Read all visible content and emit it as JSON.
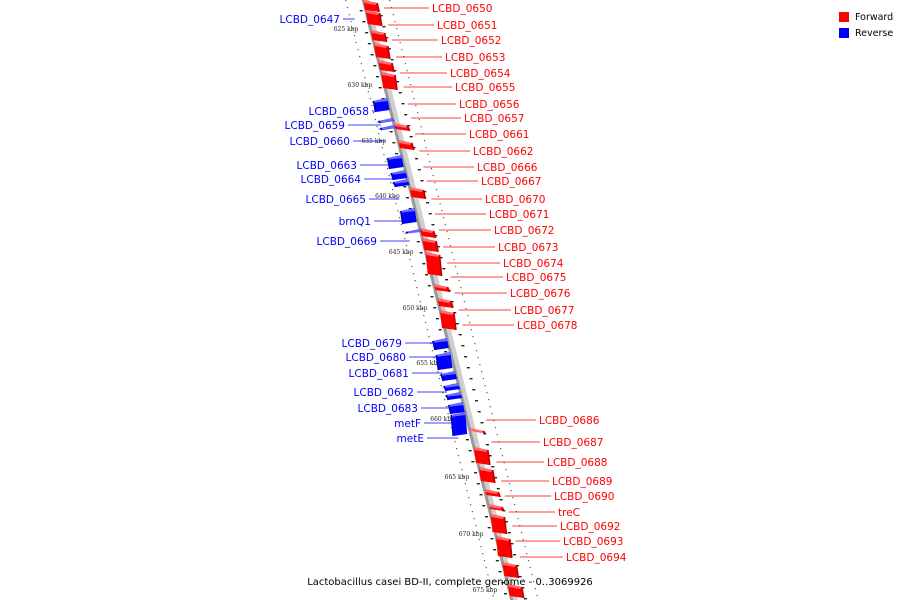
{
  "caption": "Lactobacillus casei BD-II, complete genome - 0..3069926",
  "legend": [
    {
      "label": "Forward",
      "color": "#ff0000"
    },
    {
      "label": "Reverse",
      "color": "#0000ff"
    }
  ],
  "colors": {
    "forward": "#ff0000",
    "reverse": "#0000ff",
    "backbone": "#9a9a9a"
  },
  "ticks": [
    "625 kbp",
    "630 kbp",
    "635 kbp",
    "640 kbp",
    "645 kbp",
    "650 kbp",
    "655 kbp",
    "660 kbp",
    "665 kbp",
    "670 kbp",
    "675 kbp"
  ],
  "forward_labels": [
    "LCBD_0650",
    "LCBD_0651",
    "LCBD_0652",
    "LCBD_0653",
    "LCBD_0654",
    "LCBD_0655",
    "LCBD_0656",
    "LCBD_0657",
    "LCBD_0661",
    "LCBD_0662",
    "LCBD_0666",
    "LCBD_0667",
    "LCBD_0670",
    "LCBD_0671",
    "LCBD_0672",
    "LCBD_0673",
    "LCBD_0674",
    "LCBD_0675",
    "LCBD_0676",
    "LCBD_0677",
    "LCBD_0678",
    "LCBD_0686",
    "LCBD_0687",
    "LCBD_0688",
    "LCBD_0689",
    "LCBD_0690",
    "treC",
    "LCBD_0692",
    "LCBD_0693",
    "LCBD_0694"
  ],
  "reverse_labels": [
    "LCBD_0647",
    "LCBD_0658",
    "LCBD_0659",
    "LCBD_0660",
    "LCBD_0663",
    "LCBD_0664",
    "LCBD_0665",
    "brnQ1",
    "LCBD_0669",
    "LCBD_0679",
    "LCBD_0680",
    "LCBD_0681",
    "LCBD_0682",
    "LCBD_0683",
    "metF",
    "metE"
  ]
}
